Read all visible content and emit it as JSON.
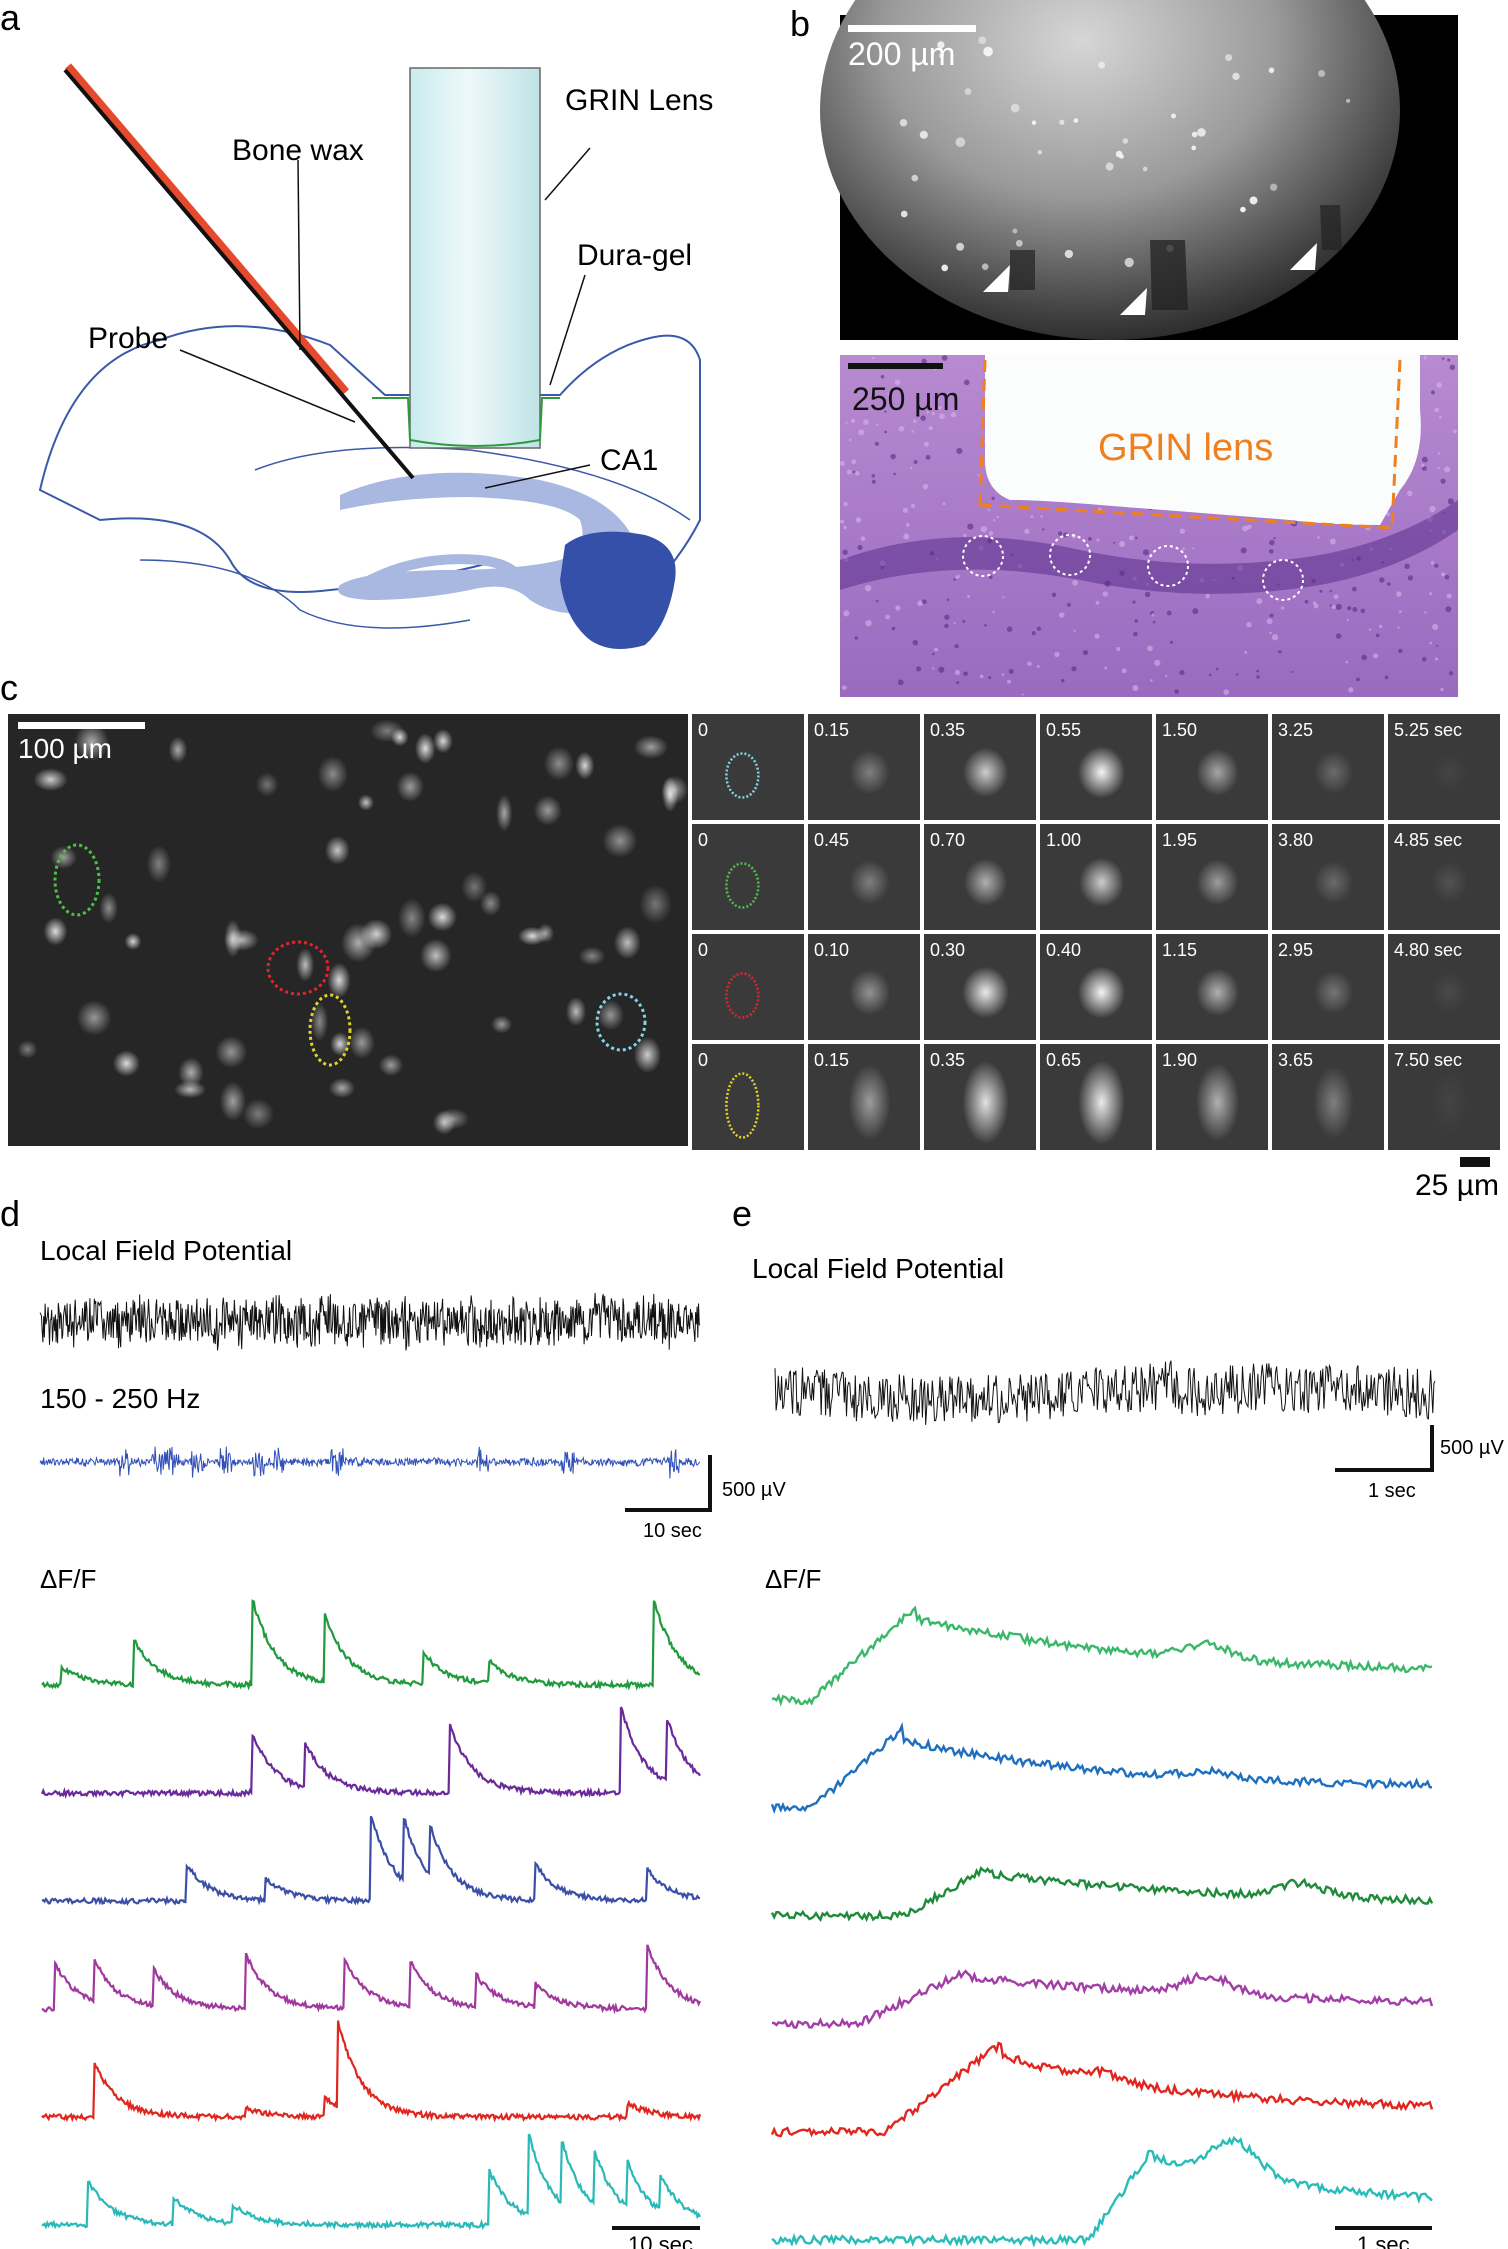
{
  "panels": {
    "a": {
      "letter": "a",
      "labels": {
        "bone_wax": "Bone wax",
        "grin_lens": "GRIN Lens",
        "dura_gel": "Dura-gel",
        "probe": "Probe",
        "ca1": "CA1"
      }
    },
    "b": {
      "letter": "b",
      "top_scale": "200 µm",
      "bottom_scale": "250 µm",
      "lens_label": "GRIN lens"
    },
    "c": {
      "letter": "c",
      "fov_scale": "100 µm",
      "tile_scale": "25 µm",
      "rows": [
        {
          "color": "#7fd6e8",
          "times": [
            "0",
            "0.15",
            "0.35",
            "0.55",
            "1.50",
            "3.25",
            "5.25 sec"
          ],
          "peaks": [
            0,
            0.35,
            0.75,
            0.95,
            0.55,
            0.25,
            0.05
          ]
        },
        {
          "color": "#4fbf4a",
          "times": [
            "0",
            "0.45",
            "0.70",
            "1.00",
            "1.95",
            "3.80",
            "4.85 sec"
          ],
          "peaks": [
            0,
            0.35,
            0.6,
            0.75,
            0.5,
            0.25,
            0.12
          ]
        },
        {
          "color": "#e0252f",
          "times": [
            "0",
            "0.10",
            "0.30",
            "0.40",
            "1.15",
            "2.95",
            "4.80 sec"
          ],
          "peaks": [
            0,
            0.45,
            0.9,
            0.95,
            0.6,
            0.3,
            0.08
          ]
        },
        {
          "color": "#e3d22a",
          "times": [
            "0",
            "0.15",
            "0.35",
            "0.65",
            "1.90",
            "3.65",
            "7.50 sec"
          ],
          "peaks": [
            0,
            0.5,
            0.85,
            0.9,
            0.6,
            0.35,
            0.05
          ]
        }
      ]
    },
    "d": {
      "letter": "d",
      "lfp_label": "Local Field Potential",
      "ripple_label": "150 - 250 Hz",
      "volt_scale": "500 µV",
      "lfp_time_scale": "10 sec",
      "df_label": "ΔF/F",
      "trace_time_scale": "10 sec"
    },
    "e": {
      "letter": "e",
      "lfp_label": "Local Field Potential",
      "volt_scale": "500 µV",
      "lfp_time_scale": "1 sec",
      "df_label": "ΔF/F",
      "trace_time_scale": "1 sec"
    }
  },
  "colors": {
    "brain_outline": "#3a5aa8",
    "hippocampus": "#a9b8e0",
    "ventricle": "#3450a8",
    "probe_red": "#e64a2e",
    "lens_fill": "#d8f0f2",
    "dura_green": "#2e9a3c",
    "orange": "#f07f1e",
    "ripple_blue": "#3050b8"
  },
  "traces_d": [
    {
      "color": "#1f9a3c",
      "events": [
        [
          0.03,
          0.2
        ],
        [
          0.14,
          0.5
        ],
        [
          0.32,
          0.95
        ],
        [
          0.43,
          0.75
        ],
        [
          0.58,
          0.35
        ],
        [
          0.68,
          0.25
        ],
        [
          0.93,
          0.95
        ]
      ]
    },
    {
      "color": "#6a2a9a",
      "events": [
        [
          0.32,
          0.65
        ],
        [
          0.4,
          0.5
        ],
        [
          0.62,
          0.75
        ],
        [
          0.88,
          0.95
        ],
        [
          0.95,
          0.7
        ]
      ]
    },
    {
      "color": "#3c4fa8",
      "events": [
        [
          0.22,
          0.4
        ],
        [
          0.34,
          0.25
        ],
        [
          0.5,
          0.95
        ],
        [
          0.55,
          0.7
        ],
        [
          0.59,
          0.55
        ],
        [
          0.75,
          0.4
        ],
        [
          0.92,
          0.35
        ]
      ]
    },
    {
      "color": "#a0389e",
      "events": [
        [
          0.02,
          0.5
        ],
        [
          0.08,
          0.45
        ],
        [
          0.17,
          0.4
        ],
        [
          0.31,
          0.6
        ],
        [
          0.46,
          0.55
        ],
        [
          0.56,
          0.5
        ],
        [
          0.66,
          0.35
        ],
        [
          0.75,
          0.25
        ],
        [
          0.92,
          0.7
        ]
      ]
    },
    {
      "color": "#e0261f",
      "events": [
        [
          0.08,
          0.6
        ],
        [
          0.31,
          0.1
        ],
        [
          0.43,
          0.2
        ],
        [
          0.45,
          0.95
        ],
        [
          0.89,
          0.15
        ]
      ]
    },
    {
      "color": "#2ab8b8",
      "events": [
        [
          0.07,
          0.5
        ],
        [
          0.2,
          0.3
        ],
        [
          0.29,
          0.2
        ],
        [
          0.68,
          0.6
        ],
        [
          0.74,
          0.9
        ],
        [
          0.79,
          0.7
        ],
        [
          0.84,
          0.6
        ],
        [
          0.89,
          0.5
        ],
        [
          0.94,
          0.4
        ]
      ]
    }
  ],
  "traces_e": [
    {
      "color": "#3ab86a",
      "rise": 0.06,
      "peak": 0.22,
      "decay": 0.55,
      "amp": 0.95,
      "bump": [
        0.66,
        0.35
      ]
    },
    {
      "color": "#1f6fbf",
      "rise": 0.06,
      "peak": 0.2,
      "decay": 0.45,
      "amp": 0.8,
      "bump": [
        0.66,
        0.15
      ]
    },
    {
      "color": "#1e8a3a",
      "rise": 0.2,
      "peak": 0.33,
      "decay": 0.6,
      "amp": 0.5,
      "bump": [
        0.8,
        0.35
      ]
    },
    {
      "color": "#a33da8",
      "rise": 0.13,
      "peak": 0.3,
      "decay": 0.75,
      "amp": 0.55,
      "bump": [
        0.66,
        0.45
      ]
    },
    {
      "color": "#e0261f",
      "rise": 0.17,
      "peak": 0.35,
      "decay": 0.55,
      "amp": 0.9,
      "bump": [
        0.5,
        0.2
      ]
    },
    {
      "color": "#2abcb8",
      "rise": 0.48,
      "peak": 0.58,
      "decay": 0.9,
      "amp": 0.95,
      "bump": [
        0.7,
        0.85
      ]
    }
  ]
}
